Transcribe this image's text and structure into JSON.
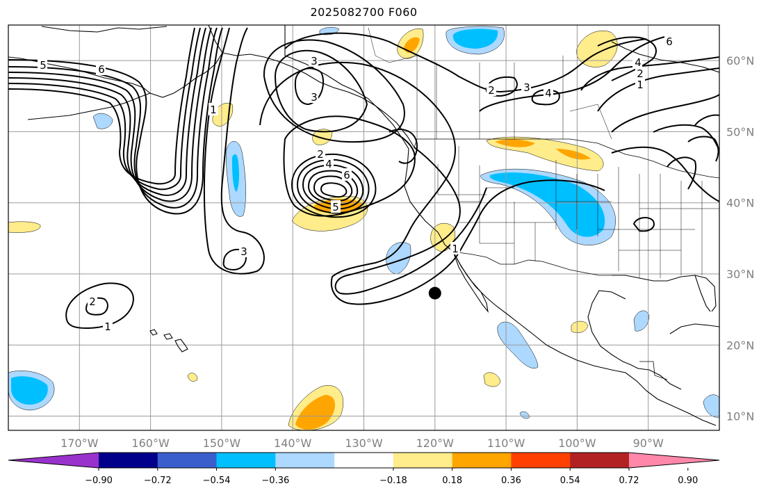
{
  "title": "2025082700 F060",
  "map": {
    "lon_range": [
      -180,
      -80
    ],
    "lat_range": [
      8,
      65
    ],
    "meridians": [
      -170,
      -160,
      -150,
      -140,
      -130,
      -120,
      -110,
      -100,
      -90
    ],
    "parallels": [
      10,
      20,
      30,
      40,
      50,
      60
    ],
    "lon_labels": [
      "170°W",
      "160°W",
      "150°W",
      "140°W",
      "130°W",
      "120°W",
      "110°W",
      "100°W",
      "90°W"
    ],
    "lat_labels": [
      "10°N",
      "20°N",
      "30°N",
      "40°N",
      "50°N",
      "60°N"
    ],
    "marker": {
      "lon": -120.0,
      "lat": 27.0,
      "color": "#000000"
    }
  },
  "colorbar": {
    "levels": [
      -0.9,
      -0.72,
      -0.54,
      -0.36,
      -0.18,
      0.18,
      0.36,
      0.54,
      0.72,
      0.9
    ],
    "labels": [
      "−0.90",
      "−0.72",
      "−0.54",
      "−0.36",
      "−0.18",
      "0.18",
      "0.36",
      "0.54",
      "0.72",
      "0.90"
    ],
    "colors": [
      "#9932cc",
      "#00008b",
      "#3a5fcd",
      "#00bfff",
      "#add8ff",
      "#ffffff",
      "#ffec8b",
      "#ffa500",
      "#ff4000",
      "#b22222",
      "#ff88aa"
    ]
  },
  "contour_labels": [
    "5",
    "6",
    "3",
    "3",
    "2",
    "3",
    "4",
    "4",
    "6",
    "2",
    "1",
    "2",
    "4",
    "6",
    "5",
    "1",
    "3",
    "2",
    "1",
    "1"
  ]
}
